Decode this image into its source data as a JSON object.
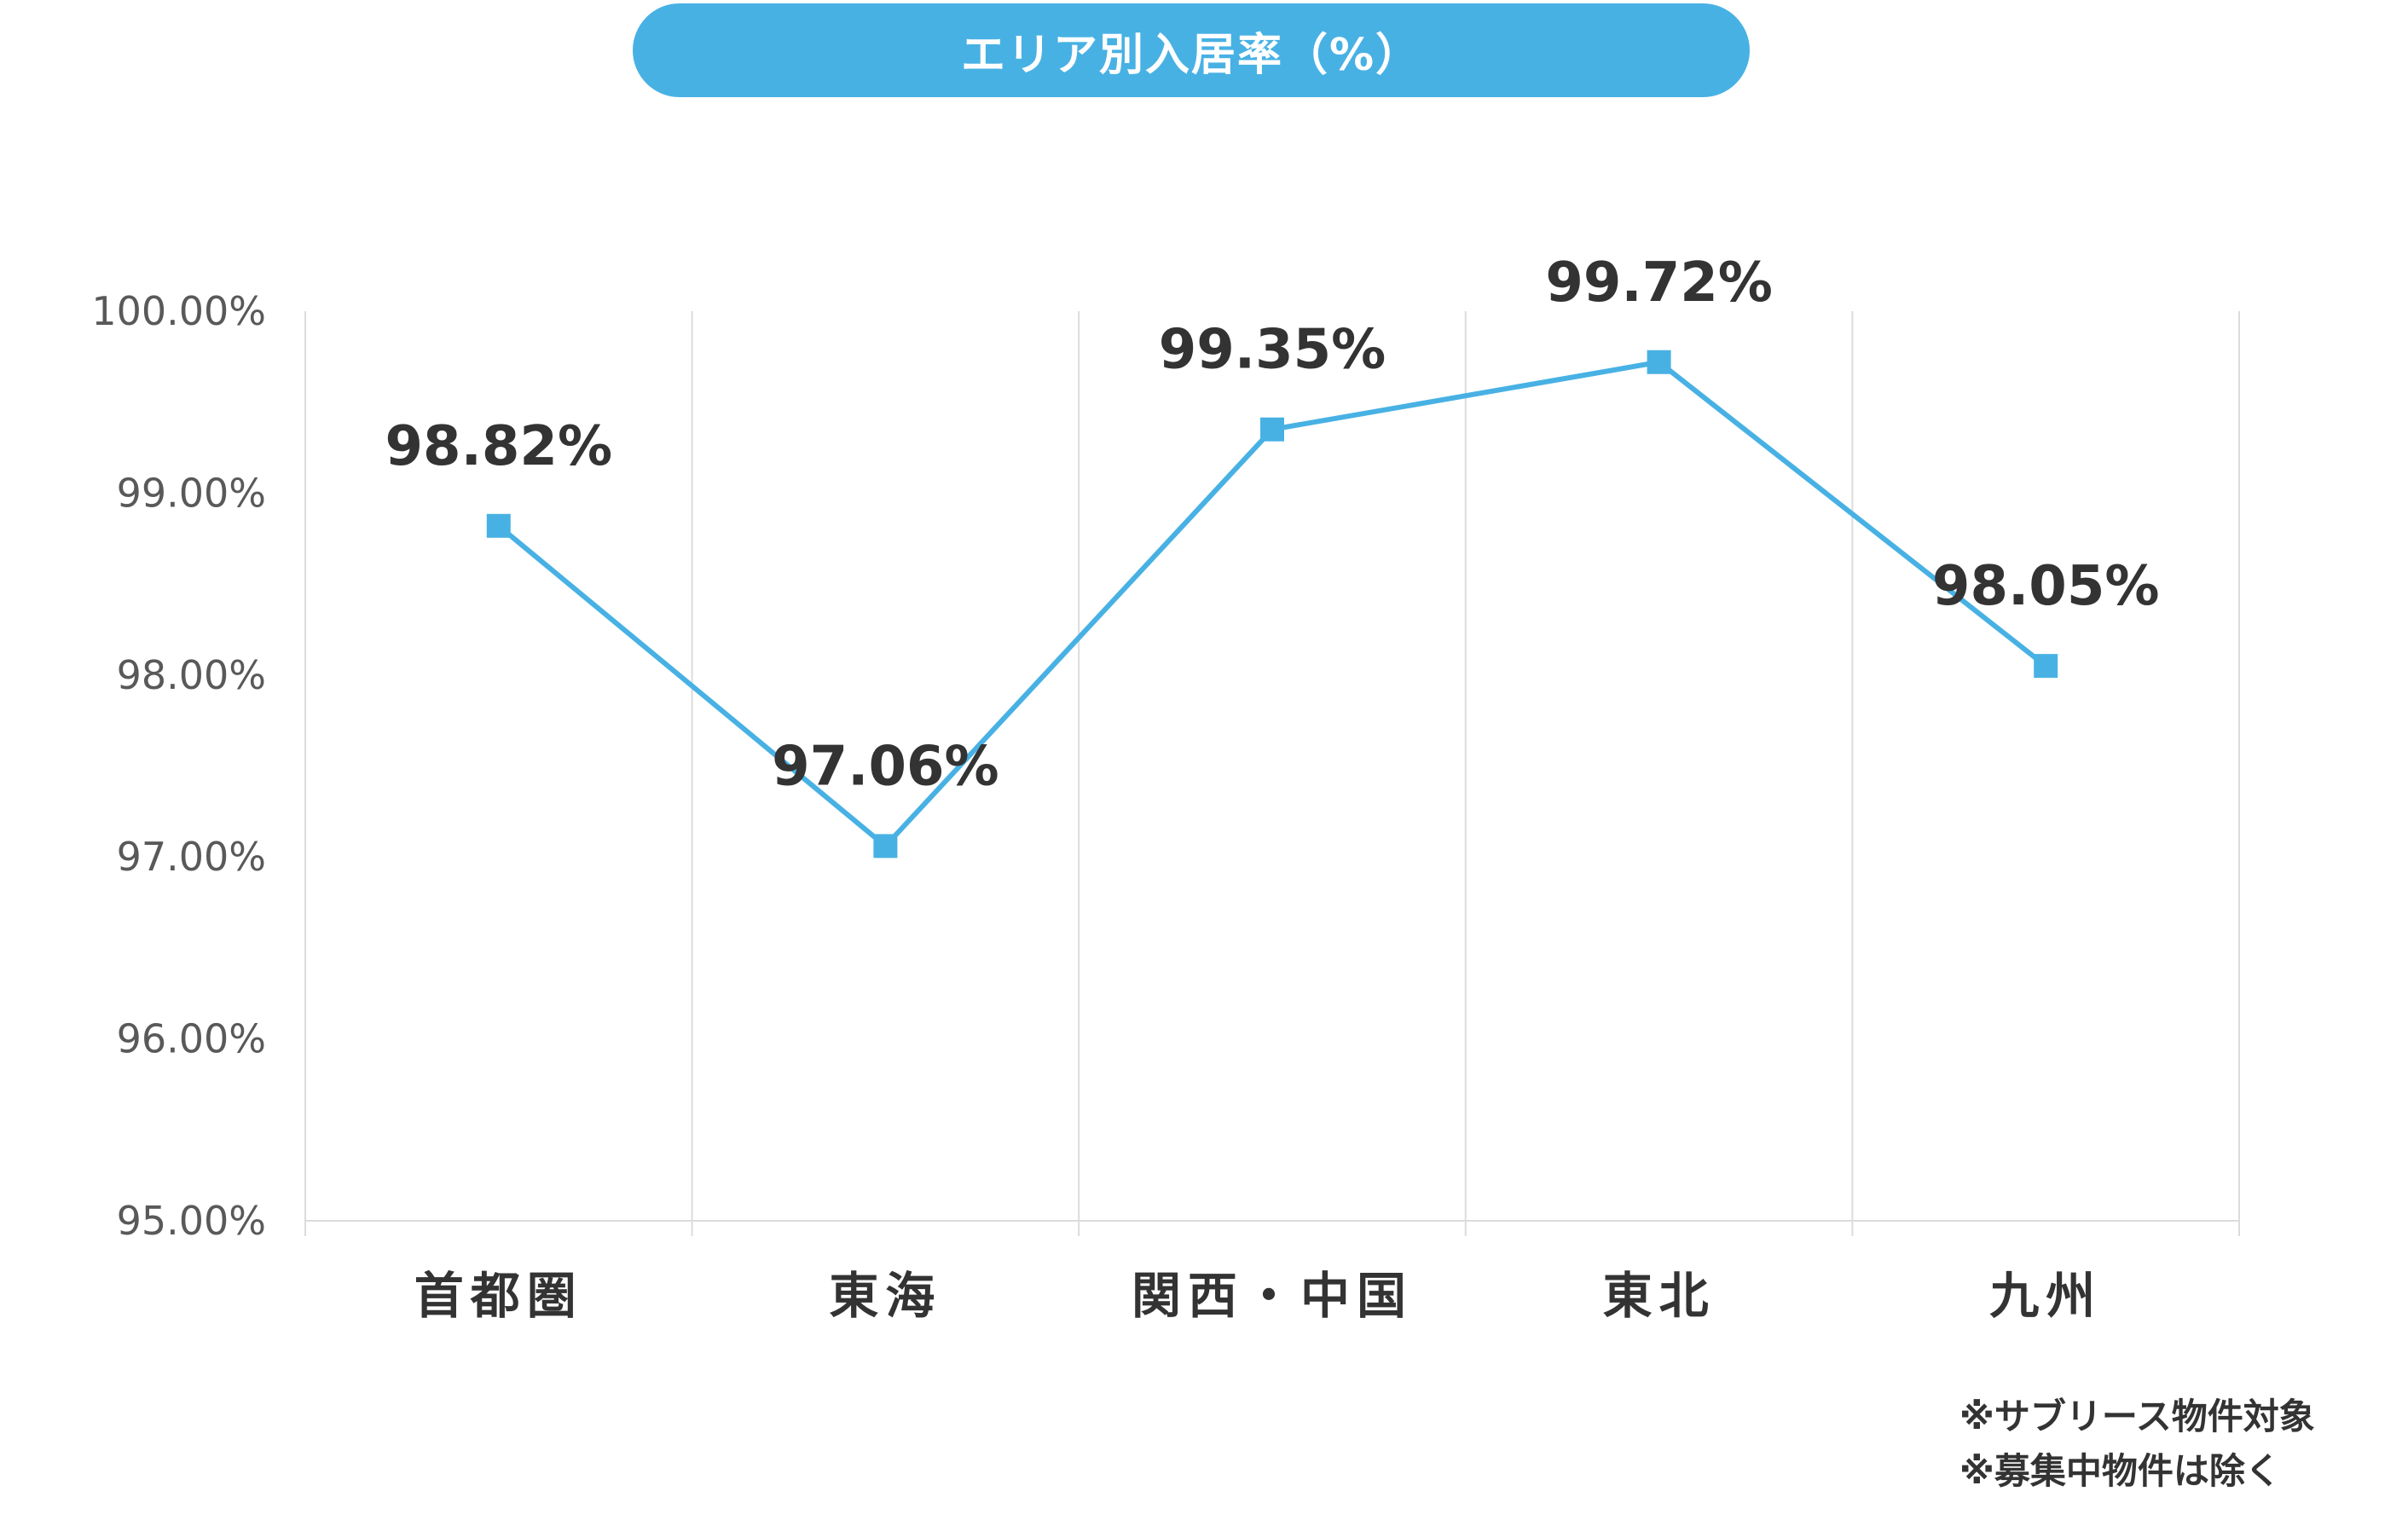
{
  "colors": {
    "accent": "#48b1e4",
    "grid": "#dcdcdc",
    "axis_text": "#595959",
    "label_text": "#333333"
  },
  "chart_data": {
    "type": "line",
    "title": "エリア別入居率（%）",
    "categories": [
      "首都圏",
      "東海",
      "関西・中国",
      "東北",
      "九州"
    ],
    "series": [
      {
        "values": [
          98.82,
          97.06,
          99.35,
          99.72,
          98.05
        ],
        "labels": [
          "98.82%",
          "97.06%",
          "99.35%",
          "99.72%",
          "98.05%"
        ],
        "marker": "square"
      }
    ],
    "ylim": [
      95,
      100
    ],
    "yticks": [
      95,
      96,
      97,
      98,
      99,
      100
    ],
    "ytick_labels": [
      "95.00%",
      "96.00%",
      "97.00%",
      "98.00%",
      "99.00%",
      "100.00%"
    ],
    "grid": "vertical",
    "xlabel": "",
    "ylabel": ""
  },
  "notes": [
    "※サブリース物件対象",
    "※募集中物件は除く"
  ]
}
